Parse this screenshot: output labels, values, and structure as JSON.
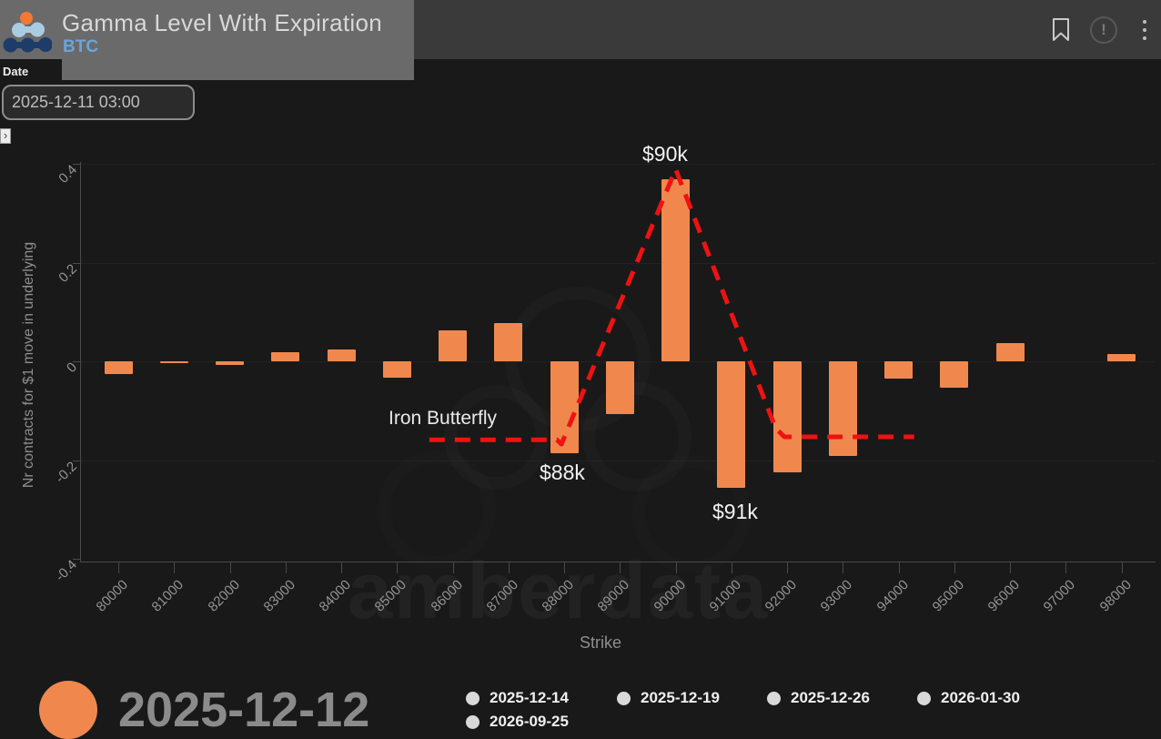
{
  "header": {
    "title": "Gamma Level With Expiration",
    "symbol": "BTC",
    "icons": [
      "bookmark-icon",
      "info-circle-icon",
      "kebab-menu-icon"
    ]
  },
  "filters": {
    "date_label": "Date",
    "date_value": "2025-12-11 03:00"
  },
  "expand_button_glyph": "›",
  "watermark": "amberdata",
  "info_glyph": "!",
  "chart_data": {
    "type": "bar",
    "title": "Gamma Level With Expiration",
    "xlabel": "Strike",
    "ylabel": "Nr contracts for $1 move in underlying",
    "ylim": [
      -0.4,
      0.4
    ],
    "yticks": [
      0.4,
      0.2,
      0,
      -0.2,
      -0.4
    ],
    "grid": "faint horizontal",
    "legend_position": "bottom",
    "categories": [
      80000,
      81000,
      82000,
      83000,
      84000,
      85000,
      86000,
      87000,
      88000,
      89000,
      90000,
      91000,
      92000,
      93000,
      94000,
      95000,
      96000,
      97000,
      98000
    ],
    "series": [
      {
        "name": "2025-12-12",
        "color": "#f0884e",
        "values": [
          -0.026,
          -0.004,
          -0.008,
          0.019,
          0.024,
          -0.033,
          0.063,
          0.077,
          -0.187,
          -0.107,
          0.369,
          -0.256,
          -0.224,
          -0.192,
          -0.035,
          -0.053,
          0.036,
          0,
          0.015
        ]
      }
    ],
    "overlay": {
      "name": "Iron Butterfly payoff",
      "color": "#ee1212",
      "style": "dashed",
      "points": [
        [
          85580,
          -0.159
        ],
        [
          87870,
          -0.159
        ],
        [
          87950,
          -0.168
        ],
        [
          90000,
          0.389
        ],
        [
          91790,
          -0.135
        ],
        [
          91950,
          -0.153
        ],
        [
          94280,
          -0.153
        ]
      ]
    },
    "annotations": [
      "$90k",
      "Iron Butterfly",
      "$88k",
      "$91k"
    ]
  },
  "legend": {
    "selected": {
      "label": "2025-12-12",
      "color": "#f0884e"
    },
    "others": [
      {
        "label": "2025-12-14"
      },
      {
        "label": "2025-12-19"
      },
      {
        "label": "2025-12-26"
      },
      {
        "label": "2026-01-30"
      },
      {
        "label": "2026-09-25"
      }
    ]
  }
}
